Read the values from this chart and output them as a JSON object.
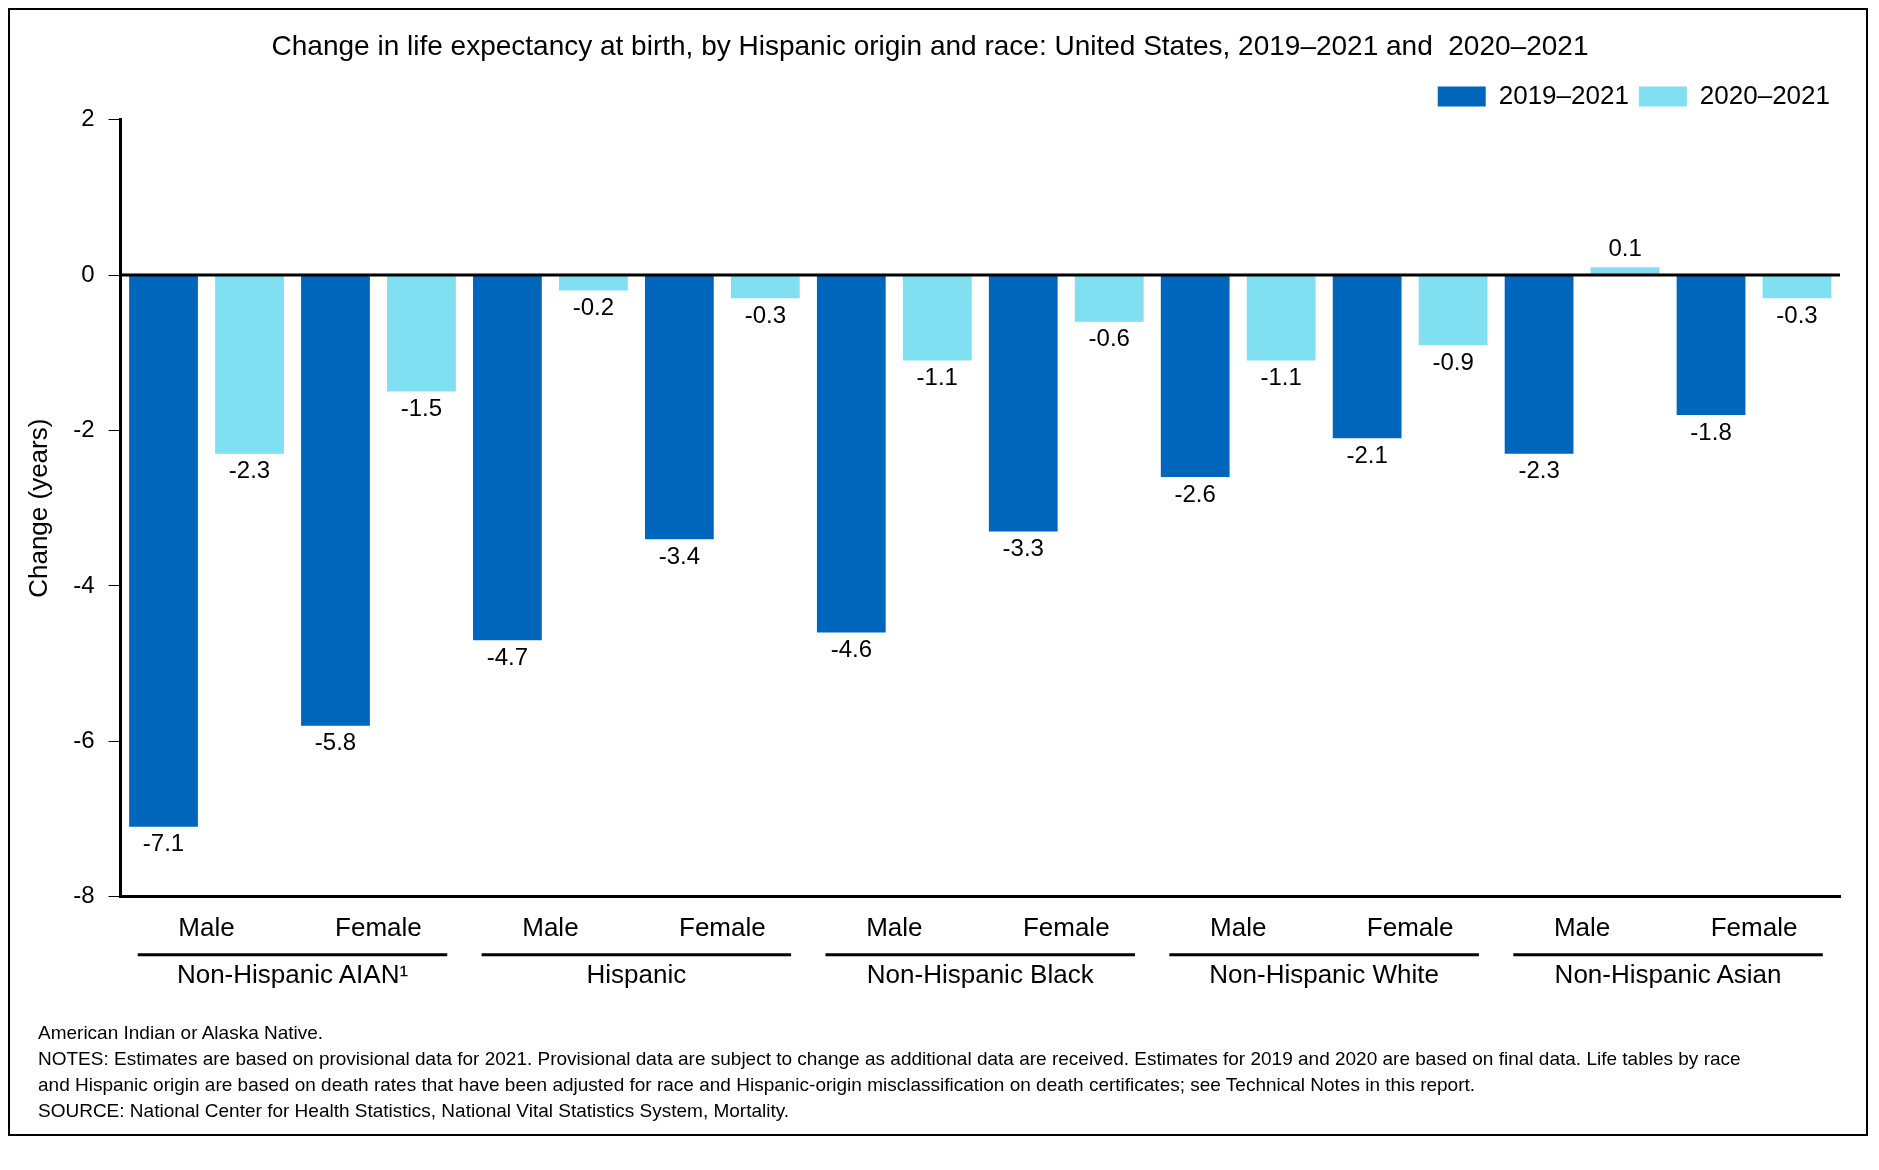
{
  "chart_data": {
    "type": "bar",
    "title": "Change in life expectancy at birth, by Hispanic origin and race: United States, 2019–2021 and  2020–2021",
    "ylabel": "Change (years)",
    "categories": [
      "Male",
      "Female",
      "Male",
      "Female",
      "Male",
      "Female",
      "Male",
      "Female",
      "Male",
      "Female"
    ],
    "series": [
      {
        "name": "2019–2021",
        "color": "#0066bb",
        "values": [
          -7.1,
          -5.8,
          -4.7,
          -3.4,
          -4.6,
          -3.3,
          -2.6,
          -2.1,
          -2.3,
          -1.8
        ]
      },
      {
        "name": "2020–2021",
        "color": "#80dff0",
        "values": [
          -2.3,
          -1.5,
          -0.2,
          -0.3,
          -1.1,
          -0.6,
          -1.1,
          -0.9,
          0.1,
          -0.3
        ]
      }
    ],
    "ylim": [
      -8,
      2
    ],
    "yticks": [
      -8,
      -6,
      -4,
      -2,
      0,
      2
    ],
    "grid": false,
    "legend": "top right",
    "data_labels": true,
    "ref_lines": [
      {
        "axis": "y",
        "value": 0,
        "color": "#000000"
      }
    ],
    "annotations": [
      "Non-Hispanic AIAN¹",
      "Hispanic",
      "Non-Hispanic Black",
      "Non-Hispanic White",
      "Non-Hispanic Asian",
      "American Indian or Alaska Native.",
      "NOTES: Estimates are based on provisional data for 2021. Provisional data are subject to change as additional data are received. Estimates for 2019 and 2020 are based on final data. Life tables by race",
      "and Hispanic origin are based on death rates that have been adjusted for race and Hispanic-origin misclassification on death certificates; see Technical Notes in this report.",
      "SOURCE: National Center for Health Statistics, National Vital Statistics System, Mortality."
    ]
  }
}
